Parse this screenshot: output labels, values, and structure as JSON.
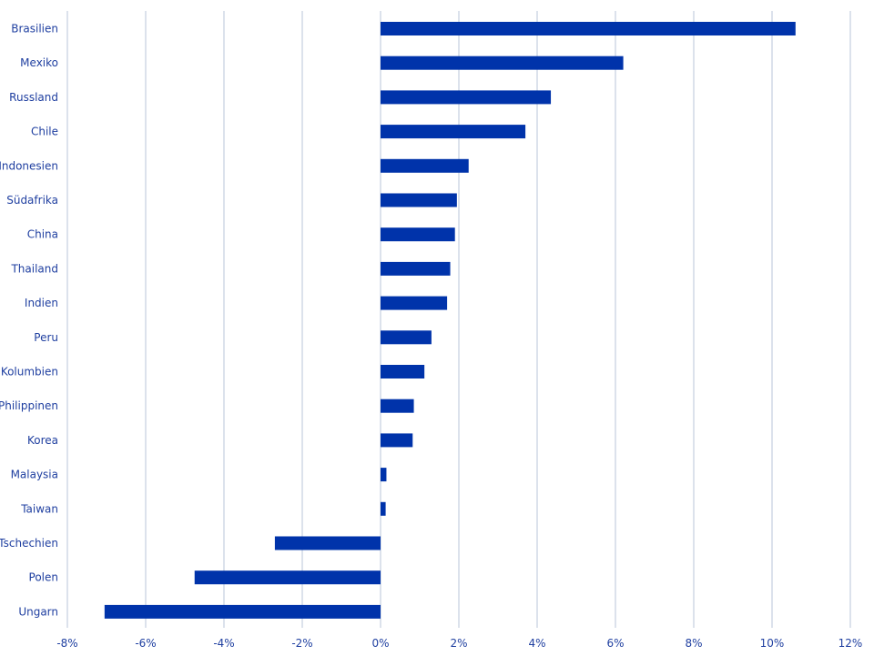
{
  "chart_data": {
    "type": "bar",
    "orientation": "horizontal",
    "categories": [
      "Brasilien",
      "Mexiko",
      "Russland",
      "Chile",
      "Indonesien",
      "Südafrika",
      "China",
      "Thailand",
      "Indien",
      "Peru",
      "Kolumbien",
      "Philippinen",
      "Korea",
      "Malaysia",
      "Taiwan",
      "Tschechien",
      "Polen",
      "Ungarn"
    ],
    "values": [
      10.6,
      6.2,
      4.35,
      3.7,
      2.25,
      1.95,
      1.9,
      1.78,
      1.7,
      1.3,
      1.12,
      0.85,
      0.82,
      0.15,
      0.13,
      -2.7,
      -4.75,
      -7.05
    ],
    "xlim": [
      -8,
      12
    ],
    "xticks": [
      -8,
      -6,
      -4,
      -2,
      0,
      2,
      4,
      6,
      8,
      10,
      12
    ],
    "tick_suffix": "%",
    "grid": true,
    "bar_color": "#0033aa",
    "text_color": "#1f3fa0",
    "grid_color": "#b9c6d8"
  }
}
